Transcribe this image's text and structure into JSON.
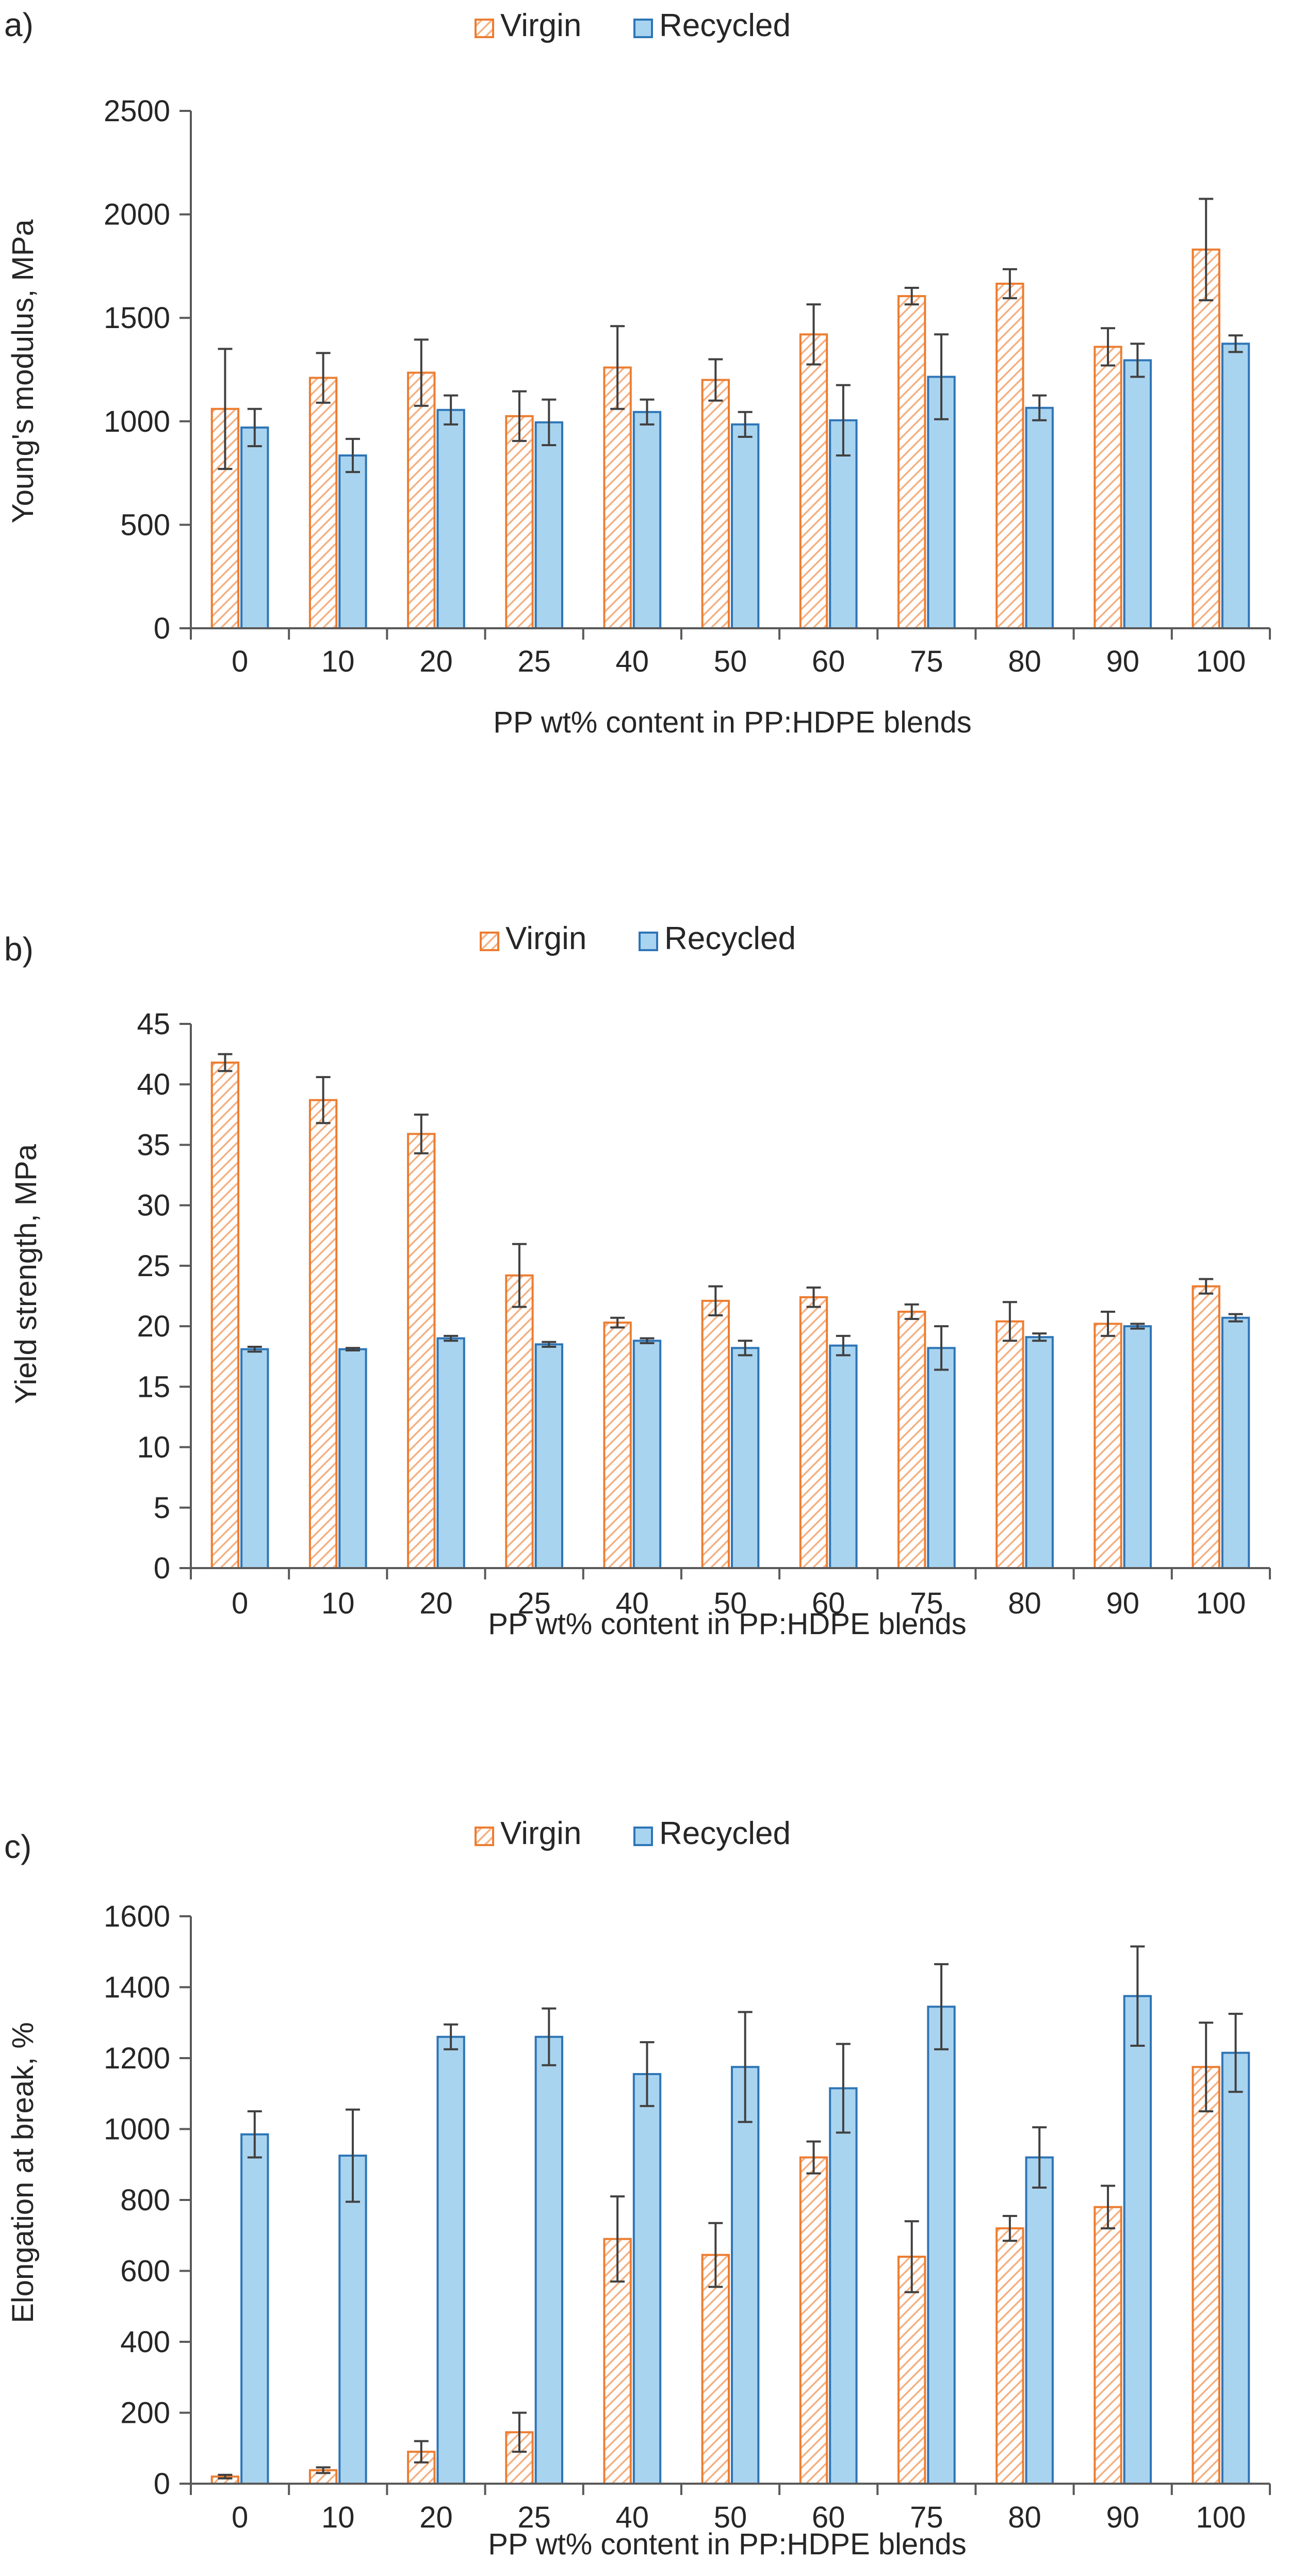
{
  "colors": {
    "virgin_stroke": "#ED7D31",
    "virgin_hatch": "#F4B183",
    "recycled_fill": "#A9D4F0",
    "recycled_stroke": "#2E75B6",
    "axis": "#595959",
    "error_bar": "#404040",
    "text": "#262626"
  },
  "chart_data": [
    {
      "type": "bar",
      "panel_label": "a)",
      "legend": [
        "Virgin",
        "Recycled"
      ],
      "categories": [
        "0",
        "10",
        "20",
        "25",
        "40",
        "50",
        "60",
        "75",
        "80",
        "90",
        "100"
      ],
      "xlabel": "PP wt% content in PP:HDPE blends",
      "ylabel": "Young's modulus, MPa",
      "ylim": [
        0,
        2500
      ],
      "yticks": [
        0,
        500,
        1000,
        1500,
        2000,
        2500
      ],
      "series": [
        {
          "name": "Virgin",
          "values": [
            1060,
            1210,
            1235,
            1025,
            1260,
            1200,
            1420,
            1605,
            1665,
            1360,
            1830
          ],
          "errors": [
            290,
            120,
            160,
            120,
            200,
            100,
            145,
            40,
            70,
            90,
            245
          ]
        },
        {
          "name": "Recycled",
          "values": [
            970,
            835,
            1055,
            995,
            1045,
            985,
            1005,
            1215,
            1065,
            1295,
            1375
          ],
          "errors": [
            90,
            80,
            70,
            110,
            60,
            60,
            170,
            205,
            60,
            80,
            40
          ]
        }
      ]
    },
    {
      "type": "bar",
      "panel_label": "b)",
      "legend": [
        "Virgin",
        "Recycled"
      ],
      "categories": [
        "0",
        "10",
        "20",
        "25",
        "40",
        "50",
        "60",
        "75",
        "80",
        "90",
        "100"
      ],
      "xlabel": "PP wt% content in PP:HDPE blends",
      "ylabel": "Yield strength, MPa",
      "ylim": [
        0,
        45
      ],
      "yticks": [
        0,
        5,
        10,
        15,
        20,
        25,
        30,
        35,
        40,
        45
      ],
      "series": [
        {
          "name": "Virgin",
          "values": [
            41.8,
            38.7,
            35.9,
            24.2,
            20.3,
            22.1,
            22.4,
            21.2,
            20.4,
            20.2,
            23.3
          ],
          "errors": [
            0.7,
            1.9,
            1.6,
            2.6,
            0.4,
            1.2,
            0.8,
            0.6,
            1.6,
            1.0,
            0.6
          ]
        },
        {
          "name": "Recycled",
          "values": [
            18.1,
            18.1,
            19.0,
            18.5,
            18.8,
            18.2,
            18.4,
            18.2,
            19.1,
            20.0,
            20.7
          ],
          "errors": [
            0.2,
            0.1,
            0.2,
            0.2,
            0.2,
            0.6,
            0.8,
            1.8,
            0.3,
            0.2,
            0.3
          ]
        }
      ]
    },
    {
      "type": "bar",
      "panel_label": "c)",
      "legend": [
        "Virgin",
        "Recycled"
      ],
      "categories": [
        "0",
        "10",
        "20",
        "25",
        "40",
        "50",
        "60",
        "75",
        "80",
        "90",
        "100"
      ],
      "xlabel": "PP wt% content in PP:HDPE blends",
      "ylabel": "Elongation at break, %",
      "ylim": [
        0,
        1600
      ],
      "yticks": [
        0,
        200,
        400,
        600,
        800,
        1000,
        1200,
        1400,
        1600
      ],
      "series": [
        {
          "name": "Virgin",
          "values": [
            20,
            38,
            90,
            145,
            690,
            645,
            920,
            640,
            720,
            780,
            1175
          ],
          "errors": [
            5,
            8,
            30,
            55,
            120,
            90,
            45,
            100,
            35,
            60,
            125
          ]
        },
        {
          "name": "Recycled",
          "values": [
            985,
            925,
            1260,
            1260,
            1155,
            1175,
            1115,
            1345,
            920,
            1375,
            1215
          ],
          "errors": [
            65,
            130,
            35,
            80,
            90,
            155,
            125,
            120,
            85,
            140,
            110
          ]
        }
      ]
    }
  ]
}
